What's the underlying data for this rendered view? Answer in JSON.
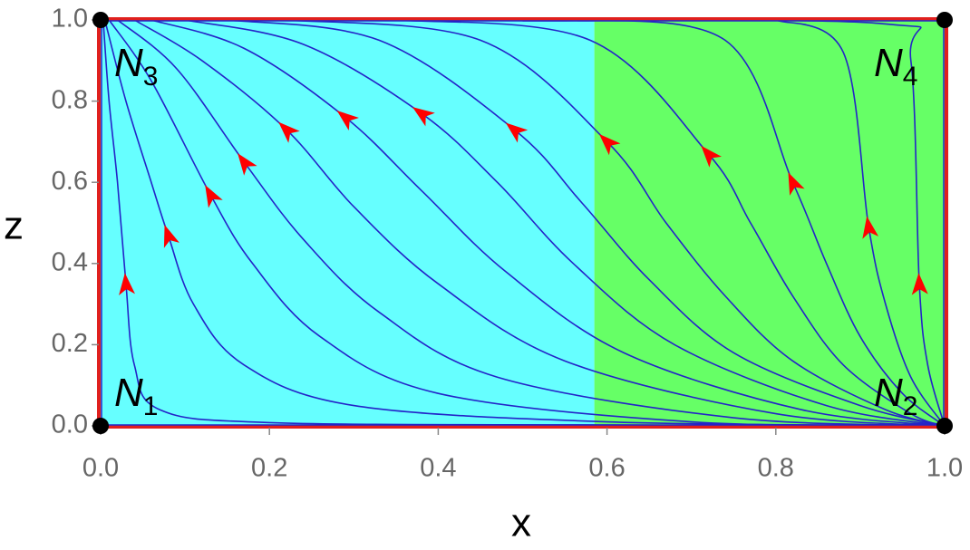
{
  "chart_data": {
    "type": "phase_portrait",
    "xlabel": "x",
    "ylabel": "z",
    "xlim": [
      0,
      1
    ],
    "ylim": [
      0,
      1
    ],
    "xticks": [
      {
        "value": 0,
        "label": "0.0"
      },
      {
        "value": 0.2,
        "label": "0.2"
      },
      {
        "value": 0.4,
        "label": "0.4"
      },
      {
        "value": 0.6,
        "label": "0.6"
      },
      {
        "value": 0.8,
        "label": "0.8"
      },
      {
        "value": 1,
        "label": "1.0"
      }
    ],
    "yticks": [
      {
        "value": 0,
        "label": "0.0"
      },
      {
        "value": 0.2,
        "label": "0.2"
      },
      {
        "value": 0.4,
        "label": "0.4"
      },
      {
        "value": 0.6,
        "label": "0.6"
      },
      {
        "value": 0.8,
        "label": "0.8"
      },
      {
        "value": 1,
        "label": "1.0"
      }
    ],
    "regions": [
      {
        "x0": 0,
        "x1": 0.585,
        "color": "#66ffff"
      },
      {
        "x0": 0.585,
        "x1": 1,
        "color": "#66ff66"
      }
    ],
    "boundary_color": "#e0201e",
    "arrow_color": "#ff0000",
    "trajectory_color": "#2424c8",
    "trajectories": [
      {
        "x": [
          0.003,
          0.01,
          0.02,
          0.03,
          0.04,
          0.07,
          0.2,
          0.6,
          1
        ],
        "y": [
          1,
          0.8,
          0.6,
          0.35,
          0.15,
          0.04,
          0.008,
          0.002,
          0
        ],
        "arrow_index": 3
      },
      {
        "x": [
          0.005,
          0.03,
          0.06,
          0.08,
          0.11,
          0.17,
          0.3,
          0.6,
          1
        ],
        "y": [
          1,
          0.8,
          0.6,
          0.47,
          0.3,
          0.15,
          0.05,
          0.01,
          0
        ],
        "arrow_index": 3
      },
      {
        "x": [
          0.01,
          0.06,
          0.13,
          0.18,
          0.26,
          0.4,
          0.7,
          1
        ],
        "y": [
          1,
          0.85,
          0.57,
          0.4,
          0.22,
          0.08,
          0.01,
          0
        ],
        "arrow_index": 2
      },
      {
        "x": [
          0.02,
          0.09,
          0.17,
          0.24,
          0.33,
          0.47,
          0.75,
          1
        ],
        "y": [
          1,
          0.88,
          0.65,
          0.46,
          0.28,
          0.12,
          0.02,
          0
        ],
        "arrow_index": 2
      },
      {
        "x": [
          0.04,
          0.12,
          0.22,
          0.3,
          0.4,
          0.55,
          0.8,
          1
        ],
        "y": [
          1,
          0.9,
          0.73,
          0.54,
          0.35,
          0.16,
          0.03,
          0
        ],
        "arrow_index": 2
      },
      {
        "x": [
          0.06,
          0.17,
          0.29,
          0.38,
          0.48,
          0.62,
          0.83,
          1
        ],
        "y": [
          1,
          0.93,
          0.76,
          0.58,
          0.38,
          0.18,
          0.04,
          0
        ],
        "arrow_index": 2
      },
      {
        "x": [
          0.1,
          0.24,
          0.38,
          0.47,
          0.56,
          0.68,
          0.86,
          1
        ],
        "y": [
          1,
          0.94,
          0.77,
          0.6,
          0.4,
          0.2,
          0.05,
          0
        ],
        "arrow_index": 2
      },
      {
        "x": [
          0.15,
          0.33,
          0.49,
          0.57,
          0.65,
          0.75,
          0.9,
          1
        ],
        "y": [
          1,
          0.95,
          0.73,
          0.55,
          0.36,
          0.18,
          0.05,
          0
        ],
        "arrow_index": 2
      },
      {
        "x": [
          0.22,
          0.45,
          0.6,
          0.67,
          0.74,
          0.82,
          0.93,
          1
        ],
        "y": [
          1,
          0.95,
          0.7,
          0.5,
          0.32,
          0.16,
          0.04,
          0
        ],
        "arrow_index": 2
      },
      {
        "x": [
          0.35,
          0.58,
          0.72,
          0.77,
          0.82,
          0.88,
          0.96,
          1
        ],
        "y": [
          1,
          0.95,
          0.67,
          0.5,
          0.32,
          0.15,
          0.03,
          0
        ],
        "arrow_index": 2
      },
      {
        "x": [
          0.55,
          0.74,
          0.82,
          0.86,
          0.9,
          0.95,
          1
        ],
        "y": [
          1,
          0.95,
          0.6,
          0.4,
          0.22,
          0.08,
          0
        ],
        "arrow_index": 2
      },
      {
        "x": [
          0.8,
          0.88,
          0.91,
          0.93,
          0.96,
          1
        ],
        "y": [
          1,
          0.92,
          0.49,
          0.3,
          0.12,
          0
        ],
        "arrow_index": 2
      },
      {
        "x": [
          0.5,
          0.93,
          0.96,
          0.97,
          0.98,
          1
        ],
        "y": [
          0.998,
          0.99,
          0.9,
          0.35,
          0.15,
          0
        ],
        "arrow_index": 3
      }
    ],
    "nodes": [
      {
        "name": "N",
        "sub": "1",
        "x": 0,
        "y": 0
      },
      {
        "name": "N",
        "sub": "2",
        "x": 1,
        "y": 0
      },
      {
        "name": "N",
        "sub": "3",
        "x": 0,
        "y": 1
      },
      {
        "name": "N",
        "sub": "4",
        "x": 1,
        "y": 1
      }
    ]
  }
}
